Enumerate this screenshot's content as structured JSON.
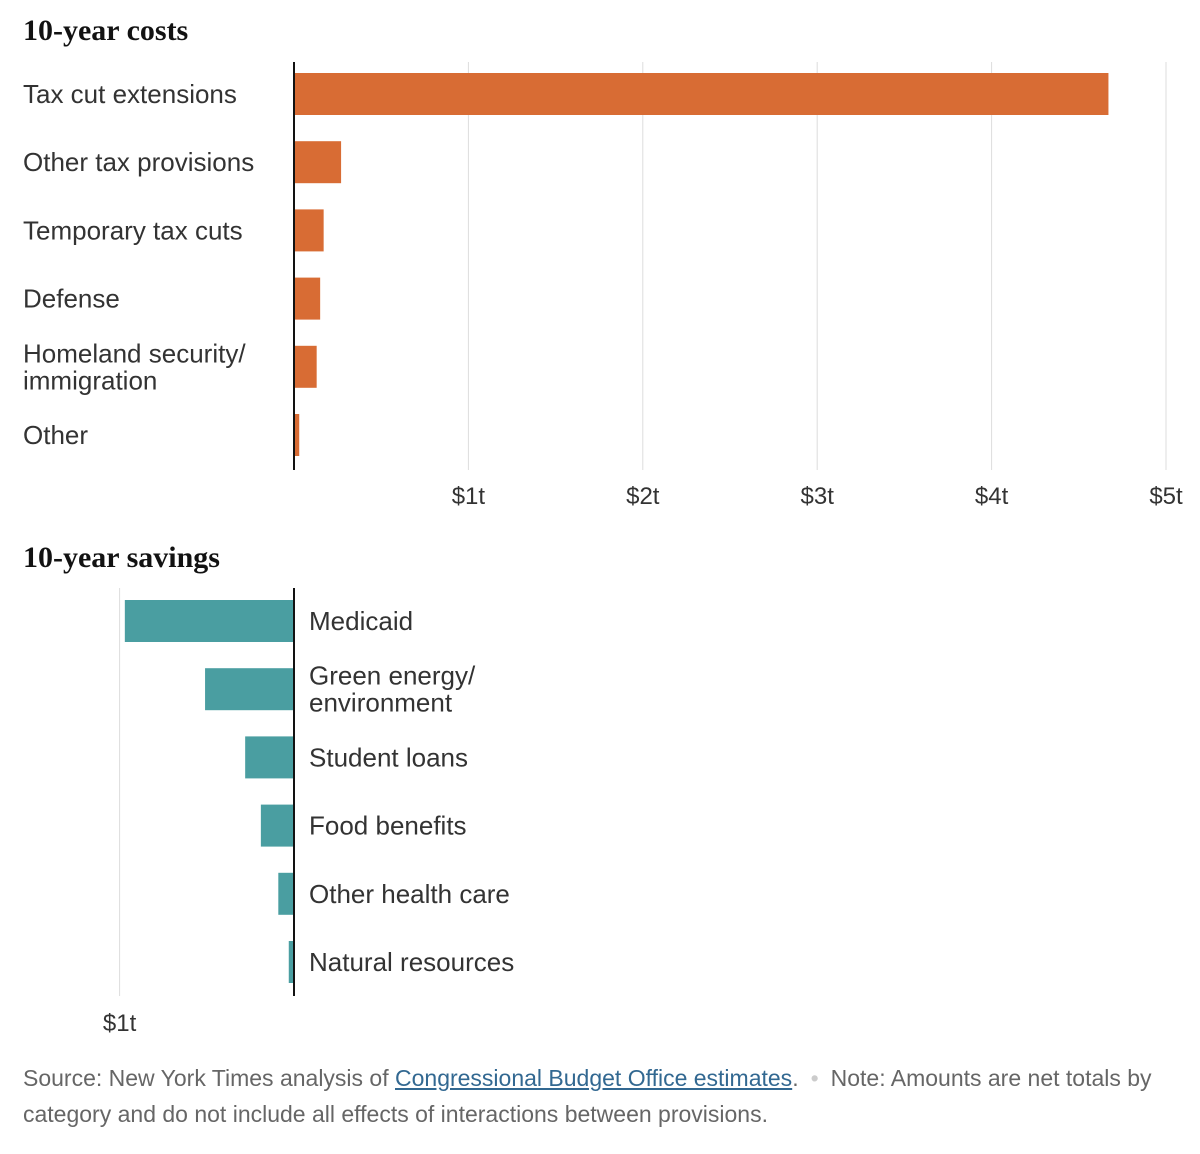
{
  "chart_data": [
    {
      "type": "bar",
      "orientation": "horizontal",
      "title": "10-year costs",
      "categories": [
        [
          "Tax cut extensions"
        ],
        [
          "Other tax provisions"
        ],
        [
          "Temporary tax cuts"
        ],
        [
          "Defense"
        ],
        [
          "Homeland security/",
          "immigration"
        ],
        [
          "Other"
        ]
      ],
      "values": [
        4.67,
        0.27,
        0.17,
        0.15,
        0.13,
        0.03
      ],
      "unit": "trillions of dollars",
      "xlim": [
        0,
        5
      ],
      "ticks": [
        {
          "value": 1,
          "label": "$1t"
        },
        {
          "value": 2,
          "label": "$2t"
        },
        {
          "value": 3,
          "label": "$3t"
        },
        {
          "value": 4,
          "label": "$4t"
        },
        {
          "value": 5,
          "label": "$5t"
        }
      ],
      "grid": true,
      "color": "#d86c34"
    },
    {
      "type": "bar",
      "orientation": "horizontal",
      "direction": "leftward",
      "title": "10-year savings",
      "categories": [
        [
          "Medicaid"
        ],
        [
          "Green energy/",
          "environment"
        ],
        [
          "Student loans"
        ],
        [
          "Food benefits"
        ],
        [
          "Other health care"
        ],
        [
          "Natural resources"
        ]
      ],
      "values": [
        0.97,
        0.51,
        0.28,
        0.19,
        0.09,
        0.03
      ],
      "unit": "trillions of dollars",
      "xlim": [
        0,
        1
      ],
      "ticks": [
        {
          "value": 1,
          "label": "$1t"
        }
      ],
      "grid": true,
      "color": "#4a9ea1"
    }
  ],
  "footer": {
    "source_prefix": "Source: New York Times analysis of ",
    "source_link": "Congressional Budget Office estimates",
    "source_suffix": ".",
    "separator": "•",
    "note": "Note: Amounts are net totals by category and do not include all effects of interactions between provisions."
  }
}
